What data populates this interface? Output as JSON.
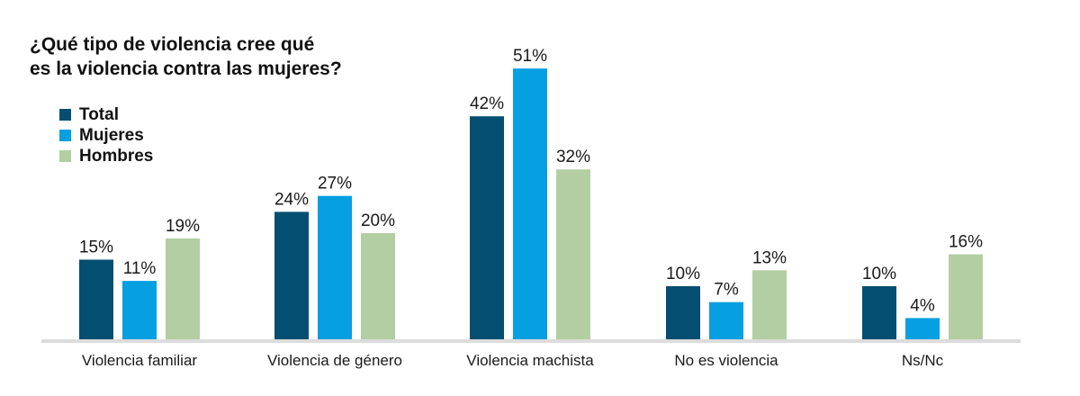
{
  "title_lines": [
    "¿Qué tipo de violencia cree qué",
    "es la violencia contra las mujeres?"
  ],
  "colors": {
    "Total": "#034e71",
    "Mujeres": "#069fe1",
    "Hombres": "#b3cea2",
    "axis": "#dcdcdc"
  },
  "chart_data": {
    "type": "bar",
    "title": "¿Qué tipo de violencia cree qué es la violencia contra las mujeres?",
    "categories": [
      "Violencia familiar",
      "Violencia de género",
      "Violencia machista",
      "No es violencia",
      "Ns/Nc"
    ],
    "series": [
      {
        "name": "Total",
        "values": [
          15,
          24,
          42,
          10,
          10
        ],
        "labels": [
          "15%",
          "24%",
          "42%",
          "10%",
          "10%"
        ]
      },
      {
        "name": "Mujeres",
        "values": [
          11,
          27,
          51,
          7,
          4
        ],
        "labels": [
          "11%",
          "27%",
          "51%",
          "7%",
          "4%"
        ]
      },
      {
        "name": "Hombres",
        "values": [
          19,
          20,
          32,
          13,
          16
        ],
        "labels": [
          "19%",
          "20%",
          "32%",
          "13%",
          "16%"
        ]
      }
    ],
    "ylim": [
      0,
      52
    ],
    "legend": "top-left",
    "grid": false,
    "xlabel": "",
    "ylabel": ""
  }
}
